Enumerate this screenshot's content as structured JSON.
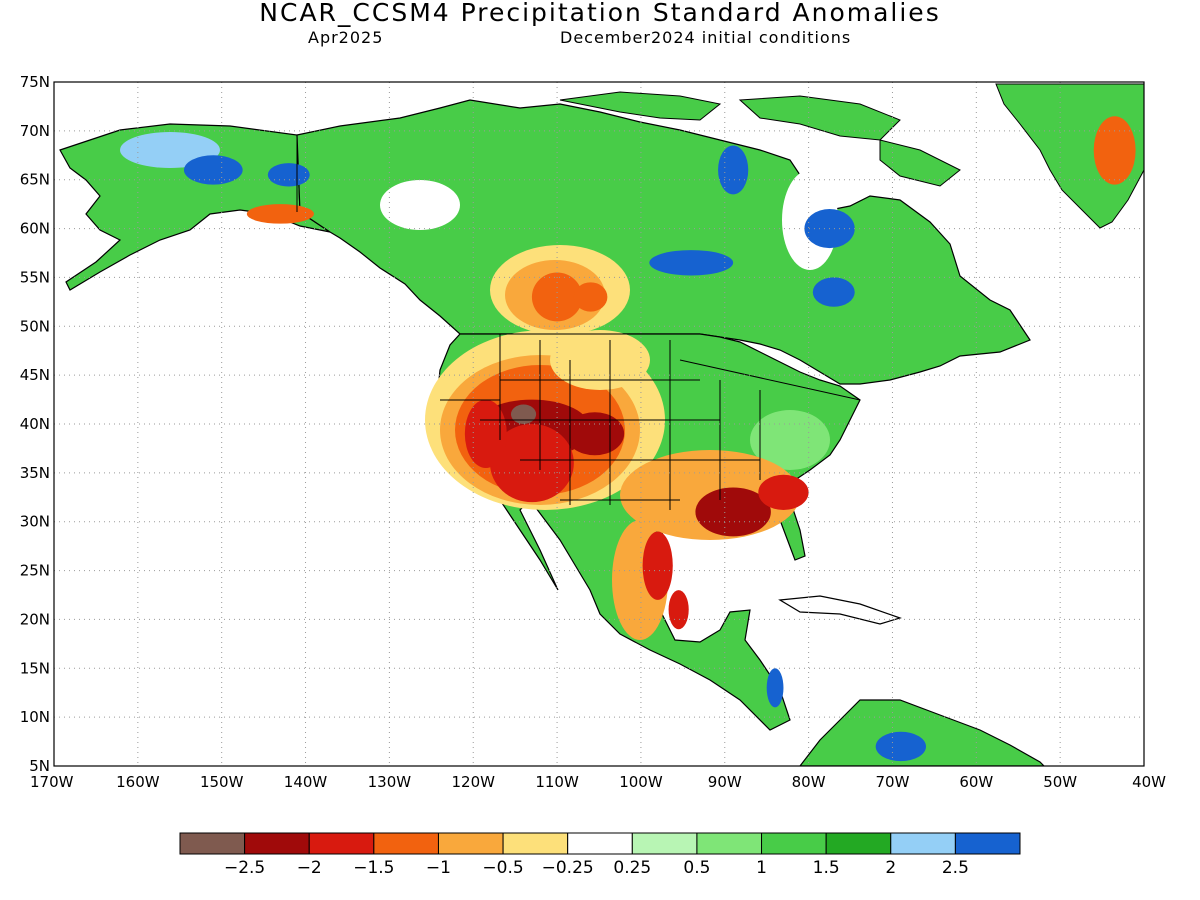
{
  "title": "NCAR_CCSM4 Precipitation Standard Anomalies",
  "valid_month": "Apr2025",
  "init_conditions": "December2024 initial conditions",
  "map": {
    "projection": "cylindrical equidistant",
    "lon_range": [
      -170,
      -40
    ],
    "lat_range": [
      5,
      75
    ],
    "grid": "dotted lines every 10° lon and 5° lat",
    "lat_ticks": [
      "75N",
      "70N",
      "65N",
      "60N",
      "55N",
      "50N",
      "45N",
      "40N",
      "35N",
      "30N",
      "25N",
      "20N",
      "15N",
      "10N",
      "5N"
    ],
    "lon_ticks": [
      "170W",
      "160W",
      "150W",
      "140W",
      "130W",
      "120W",
      "110W",
      "100W",
      "90W",
      "80W",
      "70W",
      "60W",
      "50W",
      "40W"
    ]
  },
  "colorbar": {
    "colors": [
      "#7f5a4f",
      "#a00a0a",
      "#d81a0f",
      "#f2620f",
      "#f9a83c",
      "#fde07a",
      "#ffffff",
      "#b8f5b4",
      "#7fe577",
      "#48cc48",
      "#23a923",
      "#94cff6",
      "#1662d0"
    ],
    "labels": [
      "−2.5",
      "−2",
      "−1.5",
      "−1",
      "−0.5",
      "−0.25",
      "0.25",
      "0.5",
      "1",
      "1.5",
      "2",
      "2.5"
    ]
  },
  "anomaly_regions": [
    {
      "lon": -113,
      "lat": 39.5,
      "rx": 7,
      "ry": 3,
      "color": "#a00a0a"
    },
    {
      "lon": -105.5,
      "lat": 39,
      "rx": 3.5,
      "ry": 2.2,
      "color": "#a00a0a"
    },
    {
      "lon": -113,
      "lat": 36,
      "rx": 5,
      "ry": 4,
      "color": "#d81a0f"
    },
    {
      "lon": -118.5,
      "lat": 39,
      "rx": 2.5,
      "ry": 3.5,
      "color": "#d81a0f"
    },
    {
      "lon": -114,
      "lat": 41,
      "rx": 1.5,
      "ry": 1,
      "color": "#7f5a4f"
    },
    {
      "lon": -89,
      "lat": 31,
      "rx": 4.5,
      "ry": 2.5,
      "color": "#a00a0a"
    },
    {
      "lon": -83,
      "lat": 33,
      "rx": 3,
      "ry": 1.8,
      "color": "#d81a0f"
    },
    {
      "lon": -98,
      "lat": 25.5,
      "rx": 1.8,
      "ry": 3.5,
      "color": "#d81a0f"
    },
    {
      "lon": -95.5,
      "lat": 21,
      "rx": 1.2,
      "ry": 2,
      "color": "#d81a0f"
    },
    {
      "lon": -110,
      "lat": 53,
      "rx": 3,
      "ry": 2.5,
      "color": "#f2620f"
    },
    {
      "lon": -106,
      "lat": 53,
      "rx": 2,
      "ry": 1.5,
      "color": "#f2620f"
    },
    {
      "lon": -143,
      "lat": 61.5,
      "rx": 4,
      "ry": 1,
      "color": "#f2620f"
    },
    {
      "lon": -43.5,
      "lat": 68,
      "rx": 2.5,
      "ry": 3.5,
      "color": "#f2620f"
    },
    {
      "lon": -151,
      "lat": 66,
      "rx": 3.5,
      "ry": 1.5,
      "color": "#1662d0"
    },
    {
      "lon": -142,
      "lat": 65.5,
      "rx": 2.5,
      "ry": 1.2,
      "color": "#1662d0"
    },
    {
      "lon": -94,
      "lat": 56.5,
      "rx": 5,
      "ry": 1.3,
      "color": "#1662d0"
    },
    {
      "lon": -77.5,
      "lat": 60,
      "rx": 3,
      "ry": 2,
      "color": "#1662d0"
    },
    {
      "lon": -77,
      "lat": 53.5,
      "rx": 2.5,
      "ry": 1.5,
      "color": "#1662d0"
    },
    {
      "lon": -89,
      "lat": 66,
      "rx": 1.8,
      "ry": 2.5,
      "color": "#1662d0"
    },
    {
      "lon": -84,
      "lat": 13,
      "rx": 1,
      "ry": 2,
      "color": "#1662d0"
    },
    {
      "lon": -69,
      "lat": 7,
      "rx": 3,
      "ry": 1.5,
      "color": "#1662d0"
    }
  ]
}
